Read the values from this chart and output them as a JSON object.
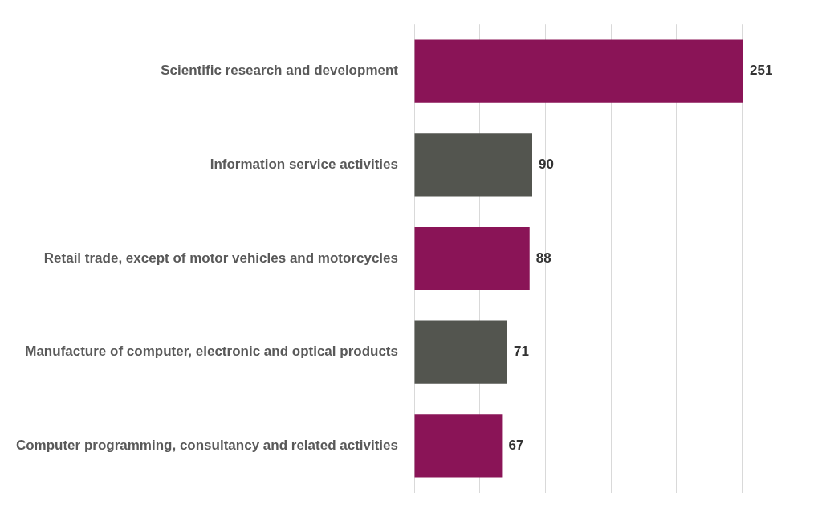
{
  "chart_data": {
    "type": "bar",
    "orientation": "horizontal",
    "categories": [
      "Scientific research and development",
      "Information service activities",
      "Retail trade, except of motor vehicles and motorcycles",
      "Manufacture of computer, electronic and optical products",
      "Computer programming, consultancy and related activities"
    ],
    "values": [
      251,
      90,
      88,
      71,
      67
    ],
    "colors": [
      "#8a1457",
      "#53554f",
      "#8a1457",
      "#53554f",
      "#8a1457"
    ],
    "xlim": [
      0,
      300
    ],
    "xticks": [
      {
        "value": 0,
        "label": null
      },
      {
        "value": 50,
        "label": null
      },
      {
        "value": 100,
        "label": null
      },
      {
        "value": 150,
        "label": null
      },
      {
        "value": 200,
        "label": null
      },
      {
        "value": 250,
        "label": null
      },
      {
        "value": 300,
        "label": null
      }
    ],
    "grid": "x",
    "tick_labels": "y",
    "data_labels": true,
    "legend": false
  }
}
